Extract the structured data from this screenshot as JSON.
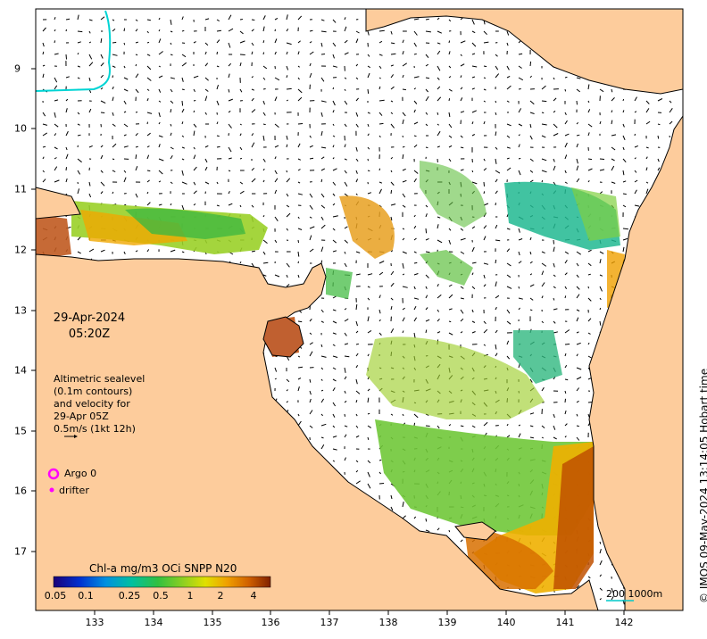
{
  "map": {
    "datetime_line1": "29-Apr-2024",
    "datetime_line2": "05:20Z",
    "altimetry_lines": [
      "Altimetric sealevel",
      "(0.1m contours)",
      "and velocity for",
      "29-Apr 05Z",
      "0.5m/s (1kt 12h)"
    ],
    "legend": {
      "argo_label": "Argo 0",
      "drifter_label": "drifter",
      "argo_color": "#ff00ff",
      "drifter_color": "#ff00ff"
    },
    "colorbar": {
      "title": "Chl-a mg/m3 OCi SNPP N20",
      "ticks": [
        "0.05",
        "0.1",
        "0.25",
        "0.5",
        "1",
        "2",
        "4"
      ]
    },
    "credit": "© IMOS 09-May-2024 13:14:05 Hobart time",
    "scale_label": "200  1000m",
    "x_ticks": [
      "133",
      "134",
      "135",
      "136",
      "137",
      "138",
      "139",
      "140",
      "141",
      "142"
    ],
    "y_ticks": [
      "9",
      "10",
      "11",
      "12",
      "13",
      "14",
      "15",
      "16",
      "17"
    ],
    "colors": {
      "land": "#fdcc9c",
      "ocean": "#ffffff",
      "contour": "#00d4d4",
      "arrow": "#000000"
    }
  }
}
